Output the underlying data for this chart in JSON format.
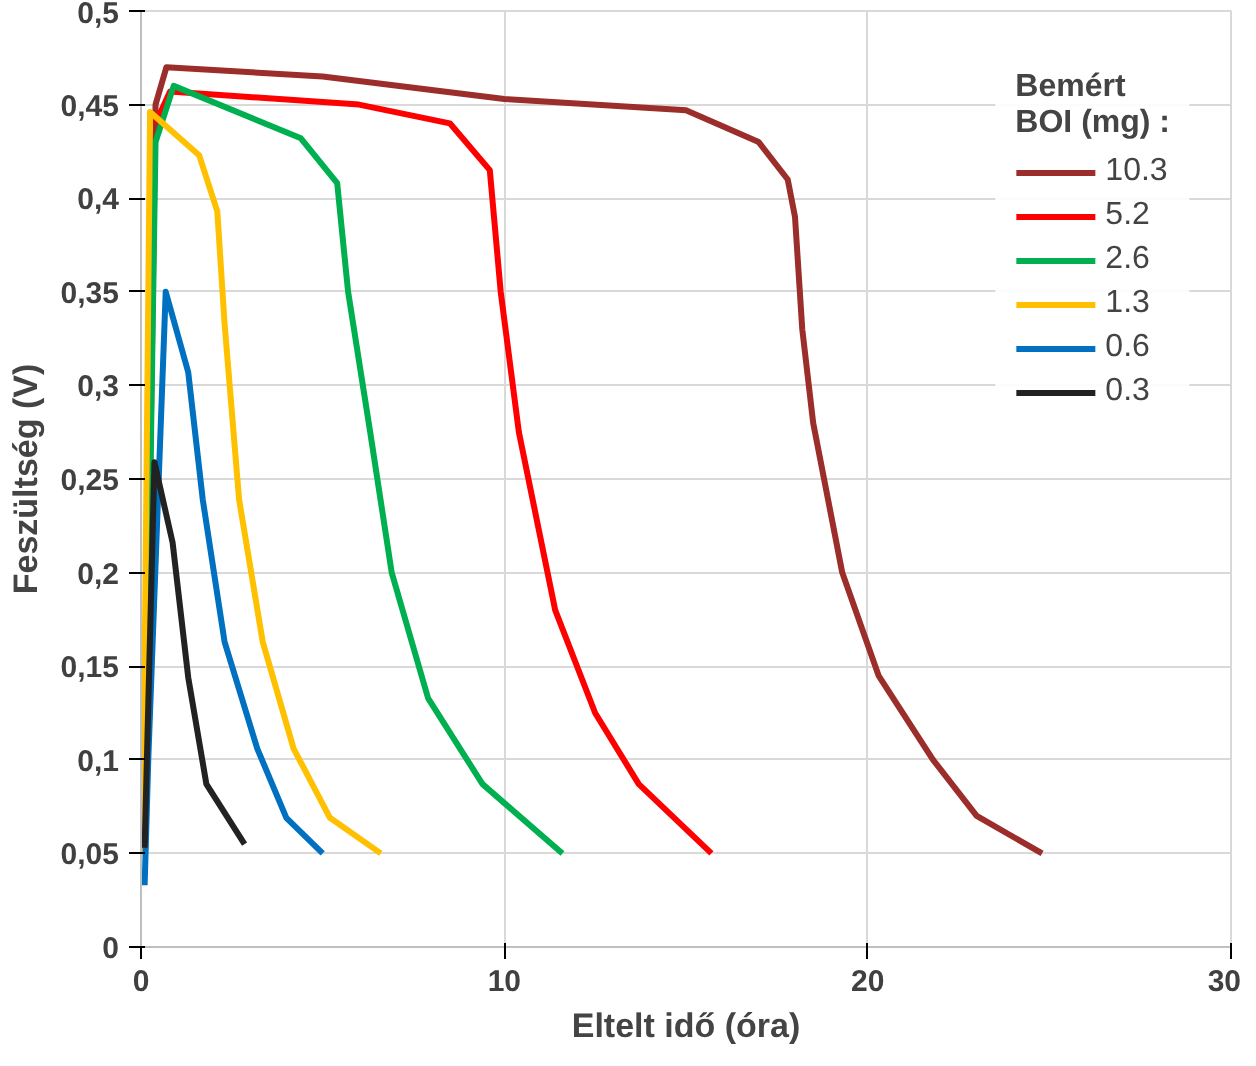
{
  "chart_data": {
    "type": "line",
    "xlabel": "Eltelt idő (óra)",
    "ylabel": "Feszültség (V)",
    "legend_title": "Bemért\nBOI (mg) :",
    "xlim": [
      0,
      30
    ],
    "ylim": [
      0,
      0.5
    ],
    "xticks": [
      0,
      10,
      20,
      30
    ],
    "yticks": [
      {
        "value": 0,
        "label": "0"
      },
      {
        "value": 0.05,
        "label": "0,05"
      },
      {
        "value": 0.1,
        "label": "0,1"
      },
      {
        "value": 0.15,
        "label": "0,15"
      },
      {
        "value": 0.2,
        "label": "0,2"
      },
      {
        "value": 0.25,
        "label": "0,25"
      },
      {
        "value": 0.3,
        "label": "0,3"
      },
      {
        "value": 0.35,
        "label": "0,35"
      },
      {
        "value": 0.4,
        "label": "0,4"
      },
      {
        "value": 0.45,
        "label": "0,45"
      },
      {
        "value": 0.5,
        "label": "0,5"
      }
    ],
    "grid": true,
    "legend": "top right",
    "marker": "none",
    "line_style": "solid",
    "series": [
      {
        "name": "10.3",
        "color": "#9b2d2a",
        "x": [
          0.1,
          0.4,
          0.7,
          5,
          10,
          15,
          17,
          17.8,
          18,
          18.2,
          18.5,
          19.3,
          20.3,
          21.8,
          23,
          24.8
        ],
        "values": [
          0.05,
          0.45,
          0.47,
          0.465,
          0.453,
          0.447,
          0.43,
          0.41,
          0.39,
          0.33,
          0.28,
          0.2,
          0.145,
          0.1,
          0.07,
          0.05
        ]
      },
      {
        "name": "5.2",
        "color": "#ff0000",
        "x": [
          0.4,
          0.8,
          6,
          8.5,
          9.6,
          9.9,
          10.4,
          11.4,
          12.5,
          13.7,
          15.7
        ],
        "values": [
          0.44,
          0.457,
          0.45,
          0.44,
          0.415,
          0.35,
          0.275,
          0.18,
          0.125,
          0.087,
          0.05
        ]
      },
      {
        "name": "2.6",
        "color": "#00b050",
        "x": [
          0.1,
          0.4,
          0.9,
          4.4,
          5.4,
          5.7,
          6.3,
          6.9,
          7.9,
          9.4,
          11.6
        ],
        "values": [
          0.05,
          0.43,
          0.46,
          0.432,
          0.408,
          0.35,
          0.276,
          0.2,
          0.133,
          0.087,
          0.05
        ]
      },
      {
        "name": "1.3",
        "color": "#ffc000",
        "x": [
          0.05,
          0.25,
          1.6,
          2.1,
          2.3,
          2.7,
          3.35,
          4.2,
          5.2,
          6.6
        ],
        "values": [
          0.05,
          0.446,
          0.423,
          0.393,
          0.333,
          0.239,
          0.163,
          0.106,
          0.069,
          0.05
        ]
      },
      {
        "name": "0.6",
        "color": "#0070c0",
        "x": [
          0.1,
          0.2,
          0.68,
          1.3,
          1.7,
          2.3,
          3.2,
          4.0,
          5.0
        ],
        "values": [
          0.033,
          0.1,
          0.35,
          0.307,
          0.239,
          0.163,
          0.106,
          0.069,
          0.05
        ]
      },
      {
        "name": "0.3",
        "color": "#222222",
        "x": [
          0.1,
          0.37,
          0.87,
          1.3,
          1.8,
          2.85
        ],
        "values": [
          0.053,
          0.259,
          0.216,
          0.144,
          0.087,
          0.055
        ]
      }
    ]
  }
}
